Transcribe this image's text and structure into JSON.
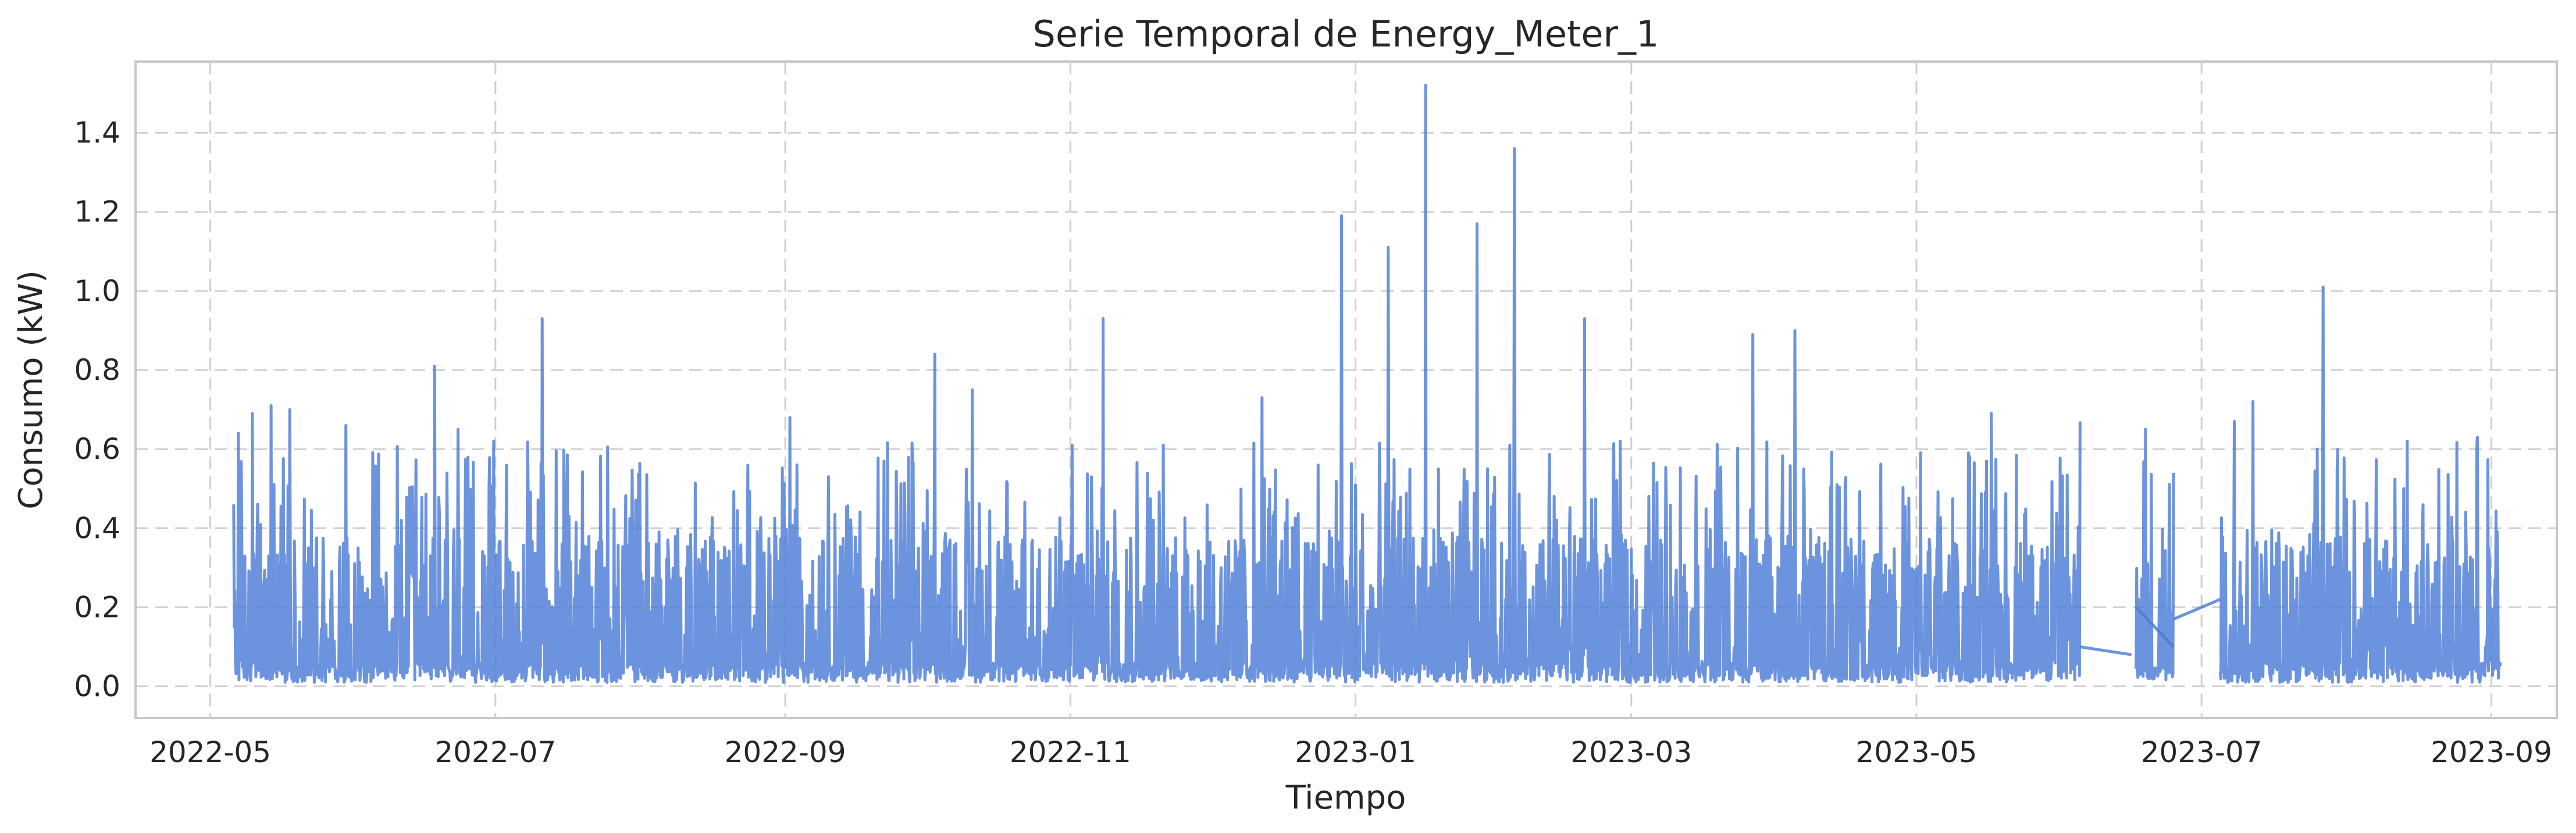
{
  "chart_data": {
    "type": "line",
    "title": "Serie Temporal de Energy_Meter_1",
    "xlabel": "Tiempo",
    "ylabel": "Consumo (kW)",
    "x_range": [
      "2022-04-15",
      "2023-09-15"
    ],
    "ylim": [
      -0.08,
      1.58
    ],
    "grid": true,
    "x_ticks": [
      "2022-05",
      "2022-07",
      "2022-09",
      "2022-11",
      "2023-01",
      "2023-03",
      "2023-05",
      "2023-07",
      "2023-09"
    ],
    "x_tick_dates": [
      "2022-05-01",
      "2022-07-01",
      "2022-09-01",
      "2022-11-01",
      "2023-01-01",
      "2023-03-01",
      "2023-05-01",
      "2023-07-01",
      "2023-09-01"
    ],
    "y_ticks": [
      "0.0",
      "0.2",
      "0.4",
      "0.6",
      "0.8",
      "1.0",
      "1.2",
      "1.4"
    ],
    "y_tick_values": [
      0.0,
      0.2,
      0.4,
      0.6,
      0.8,
      1.0,
      1.2,
      1.4
    ],
    "color": "#4c7bd5",
    "series": [
      {
        "data_segments": [
          {
            "start": "2022-05-06",
            "end": "2023-06-05"
          },
          {
            "start": "2023-06-17",
            "end": "2023-06-25"
          },
          {
            "start": "2023-07-05",
            "end": "2023-09-03"
          }
        ],
        "bridges": [
          {
            "x": [
              "2023-06-05",
              "2023-06-16"
            ],
            "y": [
              0.1,
              0.08
            ]
          },
          {
            "x": [
              "2023-06-17",
              "2023-06-25"
            ],
            "y": [
              0.2,
              0.1
            ]
          },
          {
            "x": [
              "2023-06-25",
              "2023-07-05"
            ],
            "y": [
              0.17,
              0.22
            ]
          }
        ],
        "peaks": [
          {
            "x": "2022-05-07",
            "y": 0.64
          },
          {
            "x": "2022-05-10",
            "y": 0.69
          },
          {
            "x": "2022-05-14",
            "y": 0.71
          },
          {
            "x": "2022-05-18",
            "y": 0.7
          },
          {
            "x": "2022-05-30",
            "y": 0.66
          },
          {
            "x": "2022-06-18",
            "y": 0.81
          },
          {
            "x": "2022-06-23",
            "y": 0.65
          },
          {
            "x": "2022-07-11",
            "y": 0.93
          },
          {
            "x": "2022-09-02",
            "y": 0.68
          },
          {
            "x": "2022-10-03",
            "y": 0.84
          },
          {
            "x": "2022-10-11",
            "y": 0.75
          },
          {
            "x": "2022-11-08",
            "y": 0.93
          },
          {
            "x": "2022-12-12",
            "y": 0.73
          },
          {
            "x": "2022-12-29",
            "y": 1.19
          },
          {
            "x": "2023-01-08",
            "y": 1.11
          },
          {
            "x": "2023-01-16",
            "y": 1.52
          },
          {
            "x": "2023-01-27",
            "y": 1.17
          },
          {
            "x": "2023-02-04",
            "y": 1.36
          },
          {
            "x": "2023-02-19",
            "y": 0.93
          },
          {
            "x": "2023-03-27",
            "y": 0.89
          },
          {
            "x": "2023-04-05",
            "y": 0.9
          },
          {
            "x": "2023-05-17",
            "y": 0.69
          },
          {
            "x": "2023-06-05",
            "y": 0.67
          },
          {
            "x": "2023-06-19",
            "y": 0.65
          },
          {
            "x": "2023-06-25",
            "y": 0.54
          },
          {
            "x": "2023-07-08",
            "y": 0.67
          },
          {
            "x": "2023-07-12",
            "y": 0.72
          },
          {
            "x": "2023-07-27",
            "y": 1.01
          },
          {
            "x": "2023-08-14",
            "y": 0.62
          },
          {
            "x": "2023-08-29",
            "y": 0.63
          }
        ],
        "typical_range": [
          0.01,
          0.38
        ]
      }
    ]
  }
}
